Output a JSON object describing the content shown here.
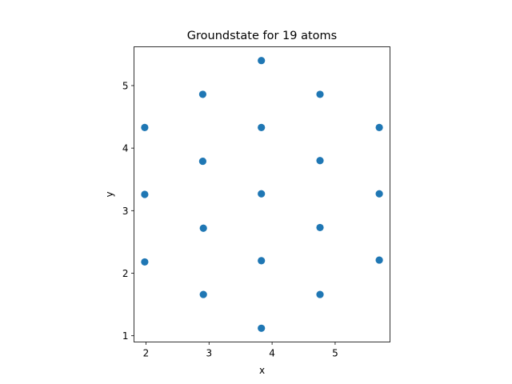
{
  "chart_data": {
    "type": "scatter",
    "title": "Groundstate for 19 atoms",
    "xlabel": "x",
    "ylabel": "y",
    "xlim": [
      1.81,
      5.87
    ],
    "ylim": [
      0.9,
      5.62
    ],
    "xticks": [
      2,
      3,
      4,
      5
    ],
    "yticks": [
      1,
      2,
      3,
      4,
      5
    ],
    "grid": false,
    "marker_color": "#1f77b4",
    "points": [
      {
        "x": 3.83,
        "y": 5.4
      },
      {
        "x": 2.9,
        "y": 4.86
      },
      {
        "x": 4.76,
        "y": 4.86
      },
      {
        "x": 1.98,
        "y": 4.33
      },
      {
        "x": 3.83,
        "y": 4.33
      },
      {
        "x": 5.7,
        "y": 4.33
      },
      {
        "x": 2.9,
        "y": 3.79
      },
      {
        "x": 4.76,
        "y": 3.8
      },
      {
        "x": 1.98,
        "y": 3.26
      },
      {
        "x": 3.83,
        "y": 3.27
      },
      {
        "x": 5.7,
        "y": 3.27
      },
      {
        "x": 2.91,
        "y": 2.72
      },
      {
        "x": 4.76,
        "y": 2.73
      },
      {
        "x": 1.98,
        "y": 2.18
      },
      {
        "x": 3.83,
        "y": 2.2
      },
      {
        "x": 5.7,
        "y": 2.21
      },
      {
        "x": 2.91,
        "y": 1.66
      },
      {
        "x": 4.76,
        "y": 1.66
      },
      {
        "x": 3.83,
        "y": 1.12
      }
    ]
  }
}
